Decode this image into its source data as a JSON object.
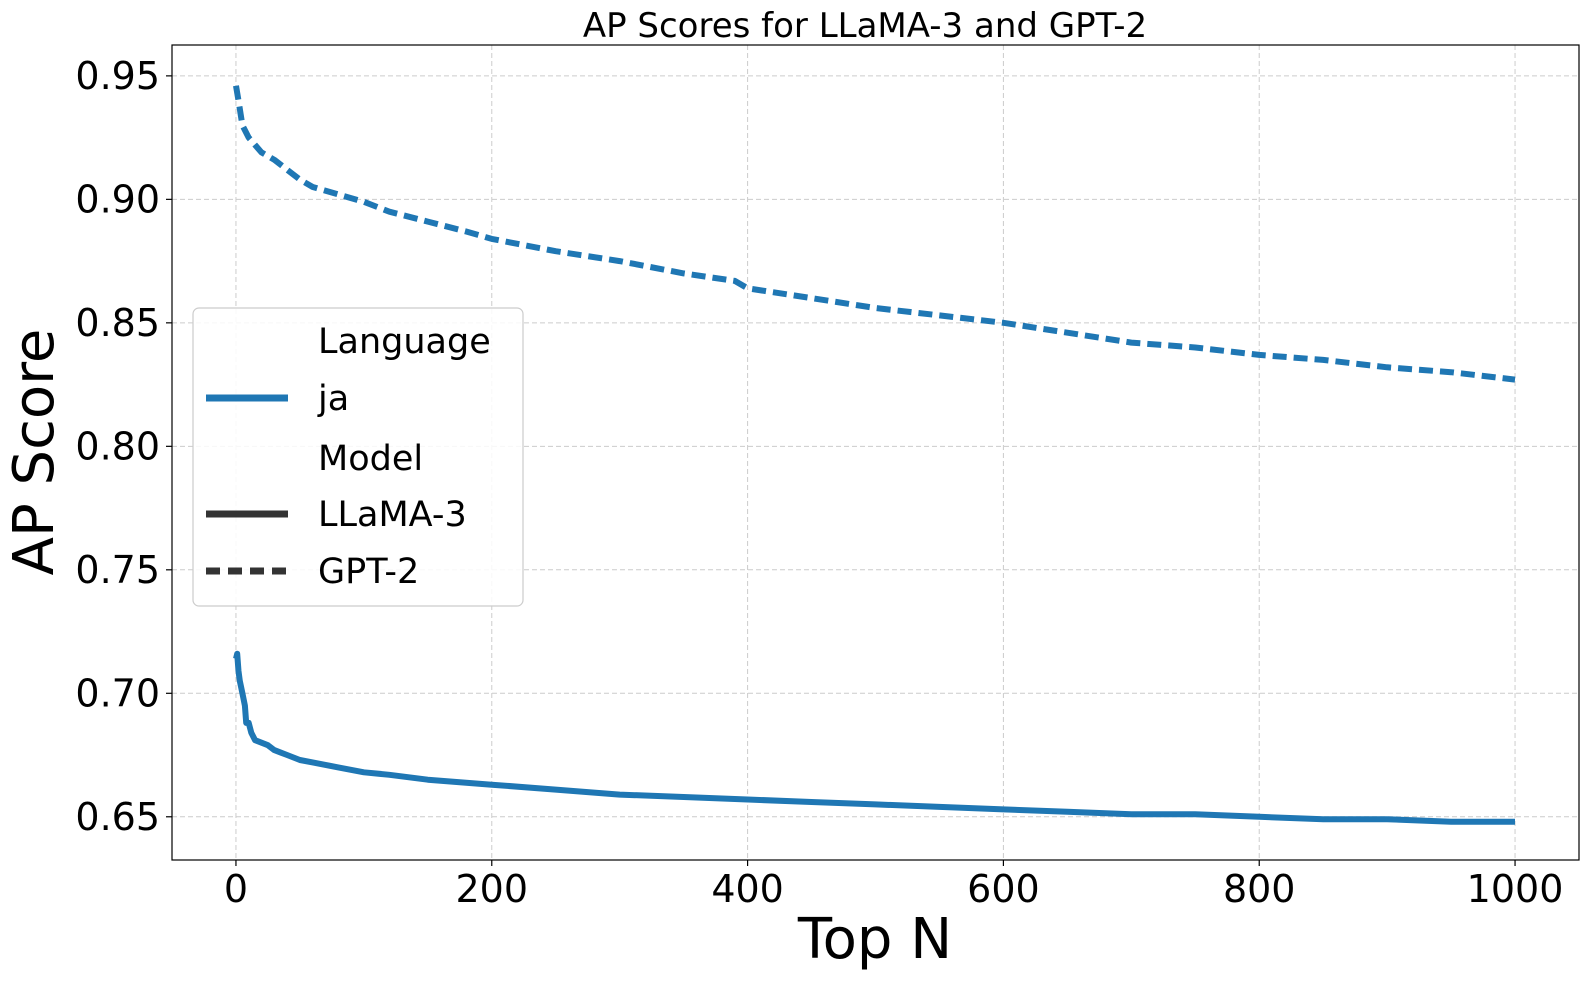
{
  "chart_data": {
    "type": "line",
    "title": "AP Scores for LLaMA-3 and GPT-2",
    "xlabel": "Top N",
    "ylabel": "AP Score",
    "xlim": [
      -50,
      1050
    ],
    "ylim": [
      0.6325,
      0.9625
    ],
    "xticks": [
      0,
      200,
      400,
      600,
      800,
      1000
    ],
    "yticks": [
      0.65,
      0.7,
      0.75,
      0.8,
      0.85,
      0.9,
      0.95
    ],
    "xtick_labels": [
      "0",
      "200",
      "400",
      "600",
      "800",
      "1000"
    ],
    "ytick_labels": [
      "0.65",
      "0.70",
      "0.75",
      "0.80",
      "0.85",
      "0.90",
      "0.95"
    ],
    "grid": true,
    "legend": {
      "placement": "center-left",
      "group_titles": [
        "Language",
        "Model"
      ],
      "entries": [
        {
          "group": "Language",
          "label": "ja",
          "color": "#1f77b4",
          "style": "solid"
        },
        {
          "group": "Model",
          "label": "LLaMA-3",
          "color": "#333333",
          "style": "solid"
        },
        {
          "group": "Model",
          "label": "GPT-2",
          "color": "#333333",
          "style": "dashed"
        }
      ]
    },
    "series": [
      {
        "language": "ja",
        "model": "LLaMA-3",
        "color": "#1f77b4",
        "style": "solid",
        "x": [
          0,
          1,
          2,
          3,
          5,
          7,
          8,
          10,
          12,
          15,
          20,
          25,
          30,
          35,
          40,
          50,
          60,
          70,
          80,
          100,
          120,
          150,
          200,
          250,
          300,
          350,
          400,
          450,
          500,
          550,
          600,
          650,
          700,
          750,
          800,
          850,
          900,
          950,
          1000
        ],
        "y": [
          0.714,
          0.716,
          0.709,
          0.705,
          0.7,
          0.695,
          0.688,
          0.688,
          0.684,
          0.681,
          0.68,
          0.679,
          0.677,
          0.676,
          0.675,
          0.673,
          0.672,
          0.671,
          0.67,
          0.668,
          0.667,
          0.665,
          0.663,
          0.661,
          0.659,
          0.658,
          0.657,
          0.656,
          0.655,
          0.654,
          0.653,
          0.652,
          0.651,
          0.651,
          0.65,
          0.649,
          0.649,
          0.648,
          0.648
        ]
      },
      {
        "language": "ja",
        "model": "GPT-2",
        "color": "#1f77b4",
        "style": "dashed",
        "x": [
          0,
          2,
          5,
          10,
          15,
          20,
          30,
          40,
          50,
          60,
          80,
          100,
          120,
          150,
          180,
          200,
          250,
          300,
          350,
          390,
          400,
          450,
          500,
          550,
          600,
          650,
          700,
          750,
          800,
          850,
          900,
          950,
          1000
        ],
        "y": [
          0.946,
          0.94,
          0.93,
          0.925,
          0.922,
          0.919,
          0.916,
          0.912,
          0.908,
          0.905,
          0.902,
          0.899,
          0.895,
          0.891,
          0.887,
          0.884,
          0.879,
          0.875,
          0.87,
          0.867,
          0.864,
          0.86,
          0.856,
          0.853,
          0.85,
          0.846,
          0.842,
          0.84,
          0.837,
          0.835,
          0.832,
          0.83,
          0.827
        ]
      }
    ]
  }
}
